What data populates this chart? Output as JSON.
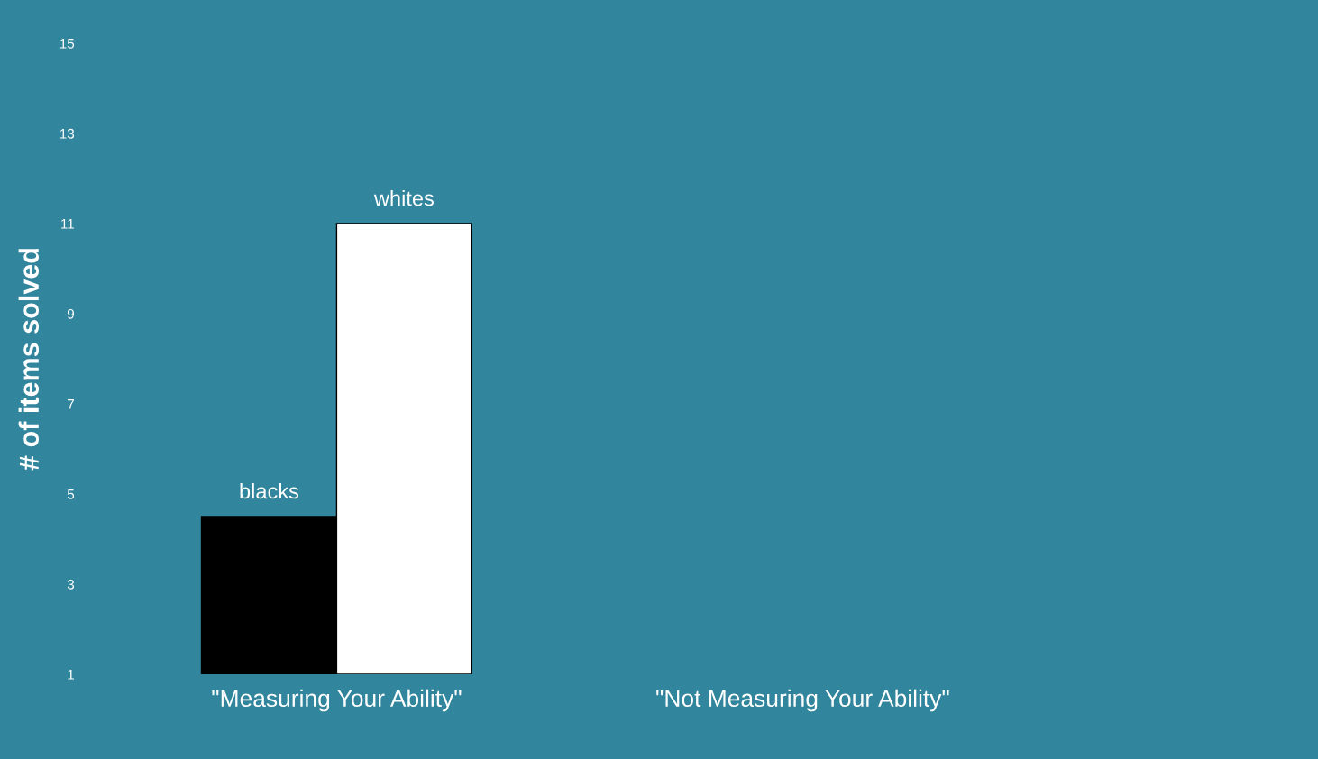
{
  "chart_data": {
    "type": "bar",
    "ylabel": "# of items solved",
    "categories": [
      "\"Measuring Your Ability\"",
      "\"Not Measuring Your Ability\""
    ],
    "series": [
      {
        "name": "blacks",
        "color": "#000000",
        "values": [
          4.5,
          null
        ]
      },
      {
        "name": "whites",
        "color": "#ffffff",
        "values": [
          11,
          null
        ]
      }
    ],
    "ylim": [
      1,
      15
    ],
    "yticks": [
      1,
      3,
      5,
      7,
      9,
      11,
      13,
      15
    ],
    "grid": false,
    "legend": false
  }
}
